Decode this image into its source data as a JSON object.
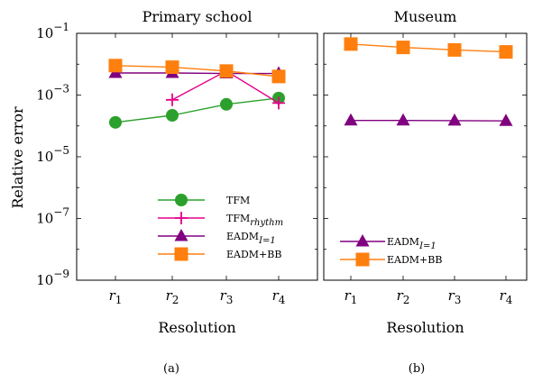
{
  "figure": {
    "y_axis_label": "Relative error",
    "captions": [
      "(a)",
      "(b)"
    ]
  },
  "chart_data": [
    {
      "type": "line",
      "title": "Primary school",
      "xlabel": "Resolution",
      "ylabel": "Relative error",
      "x_scale": "categorical",
      "y_scale": "log",
      "ylim": [
        1e-09,
        0.1
      ],
      "ytick_exponents": [
        -1,
        -3,
        -5,
        -7,
        -9
      ],
      "categories": [
        {
          "base": "r",
          "sub": "1"
        },
        {
          "base": "r",
          "sub": "2"
        },
        {
          "base": "r",
          "sub": "3"
        },
        {
          "base": "r",
          "sub": "4"
        }
      ],
      "legend_position": "bottom-center",
      "series": [
        {
          "name": "TFM",
          "name_sub": "",
          "color": "#2ca02c",
          "marker": "circle",
          "values": [
            0.00013,
            0.00022,
            0.0005,
            0.0008
          ]
        },
        {
          "name": "TFM",
          "name_sub": "rhythm",
          "color": "#e6008a",
          "marker": "plus",
          "values": [
            null,
            0.0007,
            0.006,
            0.00055
          ]
        },
        {
          "name": "EADM",
          "name_sub": "I=1",
          "color": "#800080",
          "marker": "triangle",
          "values": [
            0.0052,
            0.0052,
            0.005,
            0.005
          ]
        },
        {
          "name": "EADM+BB",
          "name_sub": "",
          "color": "#ff7f0e",
          "marker": "square",
          "values": [
            0.009,
            0.008,
            0.006,
            0.004
          ]
        }
      ]
    },
    {
      "type": "line",
      "title": "Museum",
      "xlabel": "Resolution",
      "y_scale": "log",
      "ylim": [
        1e-09,
        0.1
      ],
      "categories": [
        {
          "base": "r",
          "sub": "1"
        },
        {
          "base": "r",
          "sub": "2"
        },
        {
          "base": "r",
          "sub": "3"
        },
        {
          "base": "r",
          "sub": "4"
        }
      ],
      "legend_position": "bottom-left",
      "series": [
        {
          "name": "EADM",
          "name_sub": "I=1",
          "color": "#800080",
          "marker": "triangle",
          "values": [
            0.00015,
            0.00015,
            0.000148,
            0.000145
          ]
        },
        {
          "name": "EADM+BB",
          "name_sub": "",
          "color": "#ff7f0e",
          "marker": "square",
          "values": [
            0.045,
            0.035,
            0.029,
            0.025
          ]
        }
      ]
    }
  ]
}
